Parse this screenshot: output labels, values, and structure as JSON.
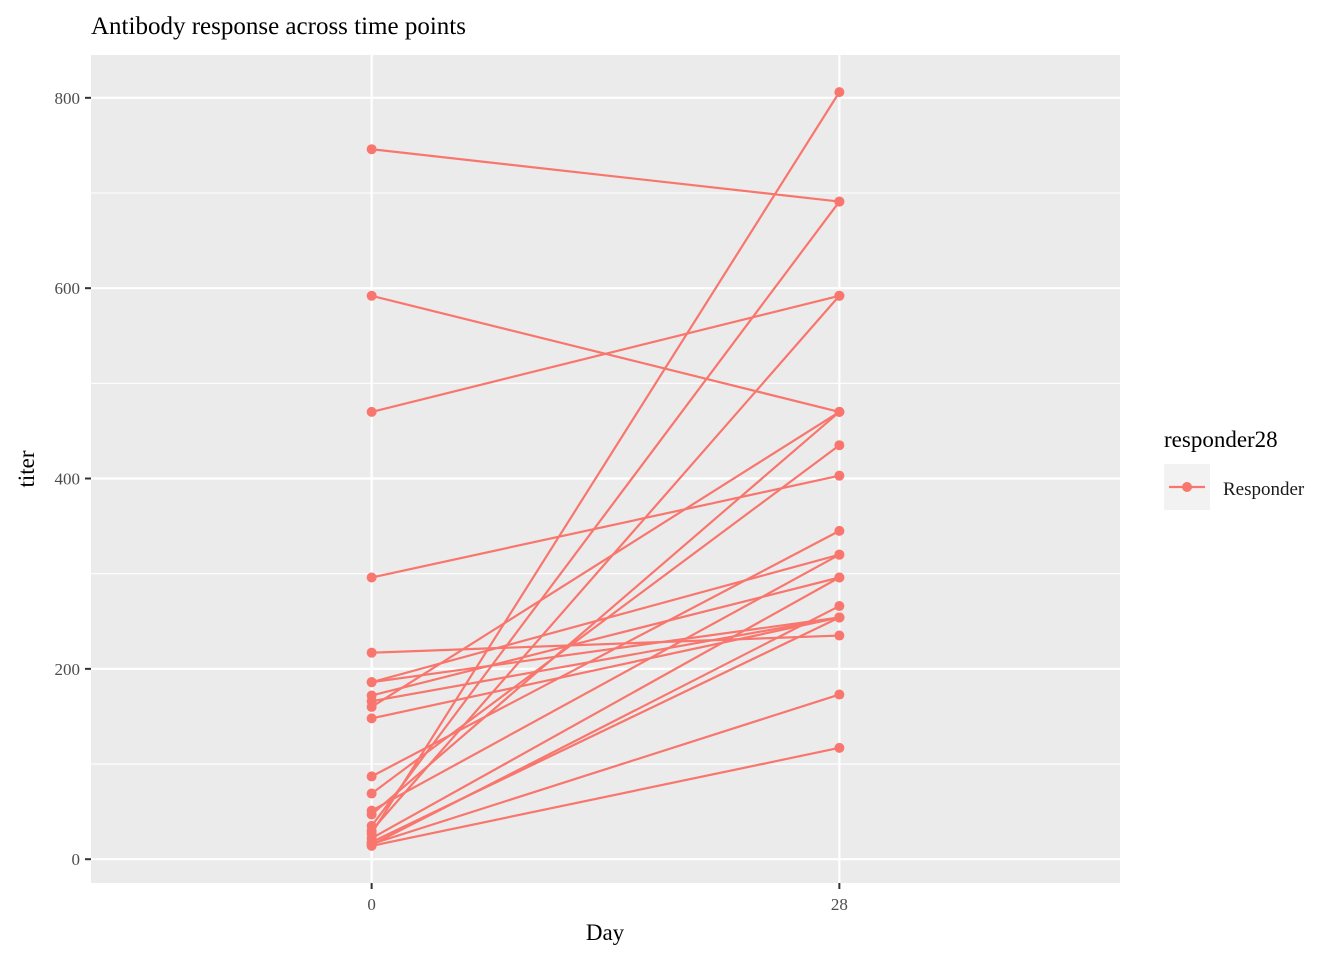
{
  "chart_data": {
    "type": "line",
    "title": "Antibody response across time points",
    "xlabel": "Day",
    "ylabel": "titer",
    "x_categories": [
      "0",
      "28"
    ],
    "x_values": [
      0,
      28
    ],
    "xlim": [
      -16.8,
      44.8
    ],
    "ylim": [
      -25,
      845
    ],
    "y_ticks": [
      0,
      200,
      400,
      600,
      800
    ],
    "y_tick_labels": [
      "0",
      "200",
      "400",
      "600",
      "800"
    ],
    "grid": true,
    "legend": {
      "title": "responder28",
      "placement": "right",
      "entries": [
        {
          "label": "Responder",
          "color": "#F8766D"
        }
      ]
    },
    "series_color": "#F8766D",
    "series": [
      {
        "values": [
          746,
          691
        ]
      },
      {
        "values": [
          592,
          470
        ]
      },
      {
        "values": [
          470,
          592
        ]
      },
      {
        "values": [
          296,
          403
        ]
      },
      {
        "values": [
          217,
          235
        ]
      },
      {
        "values": [
          186,
          320
        ]
      },
      {
        "values": [
          186,
          254
        ]
      },
      {
        "values": [
          172,
          296
        ]
      },
      {
        "values": [
          166,
          254
        ]
      },
      {
        "values": [
          160,
          470
        ]
      },
      {
        "values": [
          148,
          254
        ]
      },
      {
        "values": [
          87,
          345
        ]
      },
      {
        "values": [
          69,
          435
        ]
      },
      {
        "values": [
          51,
          320
        ]
      },
      {
        "values": [
          47,
          470
        ]
      },
      {
        "values": [
          35,
          691
        ]
      },
      {
        "values": [
          30,
          592
        ]
      },
      {
        "values": [
          27,
          806
        ]
      },
      {
        "values": [
          22,
          296
        ]
      },
      {
        "values": [
          18,
          254
        ]
      },
      {
        "values": [
          16,
          173
        ]
      },
      {
        "values": [
          15,
          266
        ]
      },
      {
        "values": [
          14,
          117
        ]
      }
    ]
  }
}
